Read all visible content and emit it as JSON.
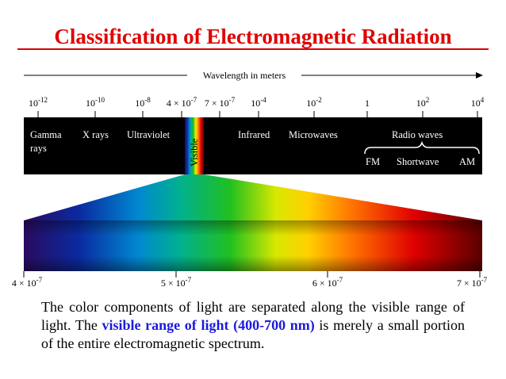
{
  "title": "Classification of Electromagnetic Radiation",
  "axis_label": "Wavelength in meters",
  "top_ticks": [
    {
      "base": "10",
      "exp": "-12"
    },
    {
      "base": "10",
      "exp": "-10"
    },
    {
      "base": "10",
      "exp": "-8"
    },
    {
      "base": "4 × 10",
      "exp": "-7"
    },
    {
      "base": "7 × 10",
      "exp": "-7"
    },
    {
      "base": "10",
      "exp": "-4"
    },
    {
      "base": "10",
      "exp": "-2"
    },
    {
      "base": "1",
      "exp": ""
    },
    {
      "base": "10",
      "exp": "2"
    },
    {
      "base": "10",
      "exp": "4"
    }
  ],
  "bands": {
    "gamma_line1": "Gamma",
    "gamma_line2": "rays",
    "xrays": "X rays",
    "ultraviolet": "Ultraviolet",
    "visible": "Visible",
    "infrared": "Infrared",
    "microwaves": "Microwaves",
    "radio": "Radio waves",
    "fm": "FM",
    "shortwave": "Shortwave",
    "am": "AM"
  },
  "bottom_ticks": [
    {
      "base": "4 × 10",
      "exp": "-7"
    },
    {
      "base": "5 × 10",
      "exp": "-7"
    },
    {
      "base": "6 × 10",
      "exp": "-7"
    },
    {
      "base": "7 × 10",
      "exp": "-7"
    }
  ],
  "caption": {
    "before": "The color components of light are separated along the visible range of light.  The ",
    "highlight": "visible range of light (400-700 nm)",
    "after": " is merely a small portion of the entire electromagnetic spectrum."
  }
}
